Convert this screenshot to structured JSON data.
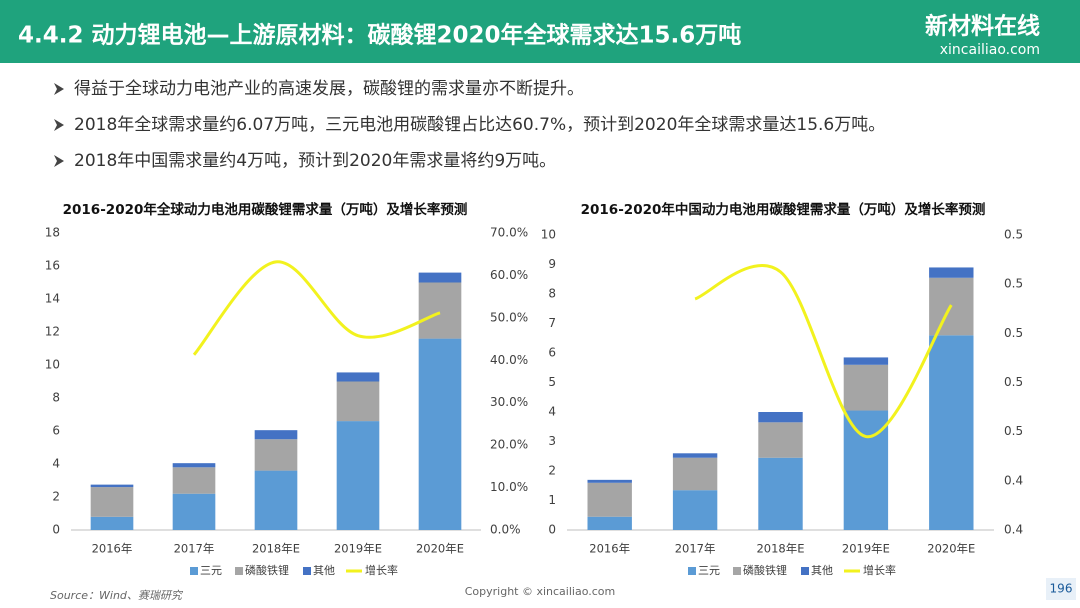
{
  "header": {
    "title": "4.4.2 动力锂电池—上游原材料：碳酸锂2020年全球需求达15.6万吨",
    "logo": "新材料在线",
    "logo_url": "xincailiao.com"
  },
  "bullets": [
    "得益于全球动力电池产业的高速发展，碳酸锂的需求量亦不断提升。",
    "2018年全球需求量约6.07万吨，三元电池用碳酸锂占比达60.7%，预计到2020年全球需求量达15.6万吨。",
    "2018年中国需求量约4万吨，预计到2020年需求量将约9万吨。"
  ],
  "chart_data": [
    {
      "type": "bar",
      "stacked": true,
      "title": "2016-2020年全球动力电池用碳酸锂需求量（万吨）及增长率预测",
      "categories": [
        "2016年",
        "2017年",
        "2018年E",
        "2019年E",
        "2020年E"
      ],
      "ylim": [
        0,
        18
      ],
      "yticks": [
        0,
        2,
        4,
        6,
        8,
        10,
        12,
        14,
        16,
        18
      ],
      "y2lim": [
        0,
        70
      ],
      "y2ticks": [
        {
          "value": 0,
          "label": "0.0%"
        },
        {
          "value": 10,
          "label": "10.0%"
        },
        {
          "value": 20,
          "label": "20.0%"
        },
        {
          "value": 30,
          "label": "30.0%"
        },
        {
          "value": 40,
          "label": "40.0%"
        },
        {
          "value": 50,
          "label": "50.0%"
        },
        {
          "value": 60,
          "label": "60.0%"
        },
        {
          "value": 70,
          "label": "70.0%"
        }
      ],
      "series": [
        {
          "name": "三元",
          "color": "#5b9bd5",
          "values": [
            0.8,
            2.2,
            3.6,
            6.6,
            11.6
          ]
        },
        {
          "name": "磷酸铁锂",
          "color": "#a5a5a5",
          "values": [
            1.8,
            1.6,
            1.9,
            2.4,
            3.4
          ]
        },
        {
          "name": "其他",
          "color": "#4472c4",
          "values": [
            0.15,
            0.25,
            0.55,
            0.55,
            0.6
          ]
        },
        {
          "name": "增长率",
          "color": "#f2f21e",
          "type": "line",
          "axis": "y2",
          "values": [
            null,
            41.3,
            63.2,
            45.8,
            51.2
          ]
        }
      ]
    },
    {
      "type": "bar",
      "stacked": true,
      "title": "2016-2020年中国动力电池用碳酸锂需求量（万吨）及增长率预测",
      "categories": [
        "2016年",
        "2017年",
        "2018年E",
        "2019年E",
        "2020年E"
      ],
      "ylim": [
        0,
        10
      ],
      "yticks": [
        0,
        1,
        2,
        3,
        4,
        5,
        6,
        7,
        8,
        9,
        10
      ],
      "y2lim": [
        0.42,
        0.54
      ],
      "y2ticks": [
        {
          "value": 0.42,
          "label": "0.4"
        },
        {
          "value": 0.44,
          "label": "0.4"
        },
        {
          "value": 0.46,
          "label": "0.5"
        },
        {
          "value": 0.48,
          "label": "0.5"
        },
        {
          "value": 0.5,
          "label": "0.5"
        },
        {
          "value": 0.52,
          "label": "0.5"
        },
        {
          "value": 0.54,
          "label": "0.5"
        }
      ],
      "series": [
        {
          "name": "三元",
          "color": "#5b9bd5",
          "values": [
            0.45,
            1.35,
            2.45,
            4.05,
            6.6
          ]
        },
        {
          "name": "磷酸铁锂",
          "color": "#a5a5a5",
          "values": [
            1.15,
            1.1,
            1.2,
            1.55,
            1.95
          ]
        },
        {
          "name": "其他",
          "color": "#4472c4",
          "values": [
            0.1,
            0.15,
            0.35,
            0.25,
            0.35
          ]
        },
        {
          "name": "增长率",
          "color": "#f2f21e",
          "type": "line",
          "axis": "y2",
          "values": [
            null,
            0.514,
            0.525,
            0.458,
            0.5115
          ]
        }
      ]
    }
  ],
  "footer": {
    "source": "Source：Wind、赛瑞研究",
    "copyright": "Copyright © xincailiao.com",
    "page": "196"
  }
}
